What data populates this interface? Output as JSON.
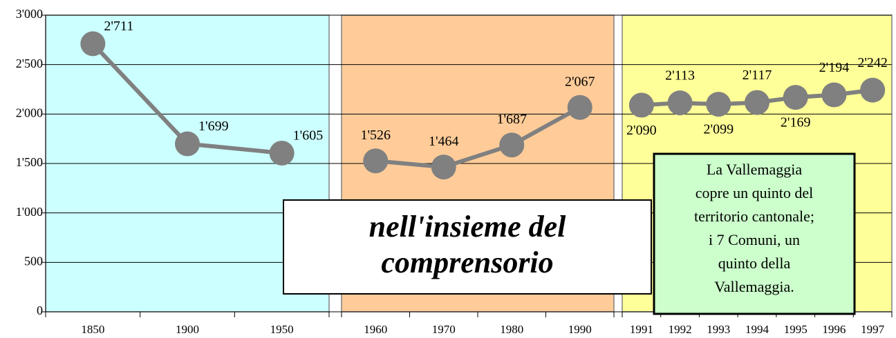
{
  "chart_data": {
    "type": "line",
    "ylim": [
      0,
      3000
    ],
    "yticks": [
      0,
      500,
      {
        "value": 1000,
        "label": "1'000"
      },
      {
        "value": 1500,
        "label": "1'500"
      },
      {
        "value": 2000,
        "label": "2'000"
      },
      {
        "value": 2500,
        "label": "2'500"
      },
      {
        "value": 3000,
        "label": "3'000"
      }
    ],
    "grid": true,
    "line_color": "#808080",
    "panels": [
      {
        "color": "#ccffff",
        "categories": [
          "1850",
          "1900",
          "1950"
        ],
        "values": [
          2711,
          1699,
          1605
        ],
        "value_labels": [
          "2'711",
          "1'699",
          "1'605"
        ]
      },
      {
        "color": "#ffcc99",
        "categories": [
          "1960",
          "1970",
          "1980",
          "1990"
        ],
        "values": [
          1526,
          1464,
          1687,
          2067
        ],
        "value_labels": [
          "1'526",
          "1'464",
          "1'687",
          "2'067"
        ]
      },
      {
        "color": "#ffff99",
        "categories": [
          "1991",
          "1992",
          "1993",
          "1994",
          "1995",
          "1996",
          "1997"
        ],
        "values": [
          2090,
          2113,
          2099,
          2117,
          2169,
          2194,
          2242
        ],
        "value_labels": [
          "2'090",
          "2'113",
          "2'099",
          "2'117",
          "2'169",
          "2'194",
          "2'242"
        ]
      }
    ],
    "annotations": [
      {
        "color": "#ffffff",
        "lines": [
          "nell'insieme del",
          "comprensorio"
        ]
      },
      {
        "color": "#ccffcc",
        "lines": [
          "La Vallemaggia",
          "copre un quinto del",
          "territorio cantonale;",
          "i 7 Comuni, un",
          "quinto della",
          "Vallemaggia."
        ]
      }
    ]
  }
}
